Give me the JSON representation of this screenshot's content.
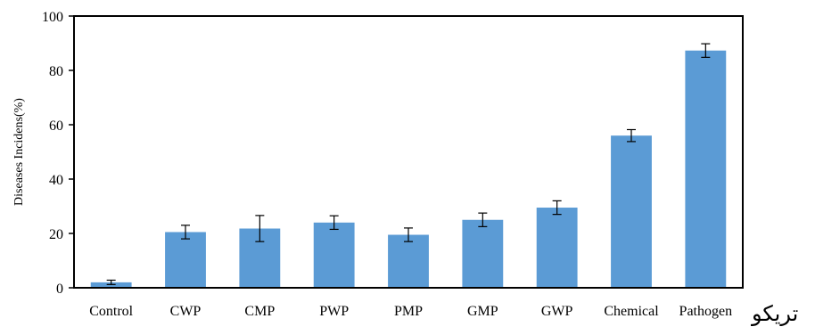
{
  "chart_data": {
    "type": "bar",
    "categories": [
      "Control",
      "CWP",
      "CMP",
      "PWP",
      "PMP",
      "GMP",
      "GWP",
      "Chemical",
      "Pathogen"
    ],
    "values": [
      2,
      20.5,
      21.8,
      24,
      19.5,
      25,
      29.5,
      56,
      87.3
    ],
    "errors": [
      0.8,
      2.5,
      4.8,
      2.5,
      2.5,
      2.5,
      2.5,
      2.2,
      2.5
    ],
    "title": "",
    "xlabel": "",
    "ylabel": "Diseases Incidens(%)",
    "ylim": [
      0,
      100
    ],
    "yticks": [
      0,
      20,
      40,
      60,
      80,
      100
    ],
    "grid": false,
    "bar_color": "#5b9bd5"
  },
  "side_text": "تریکو"
}
